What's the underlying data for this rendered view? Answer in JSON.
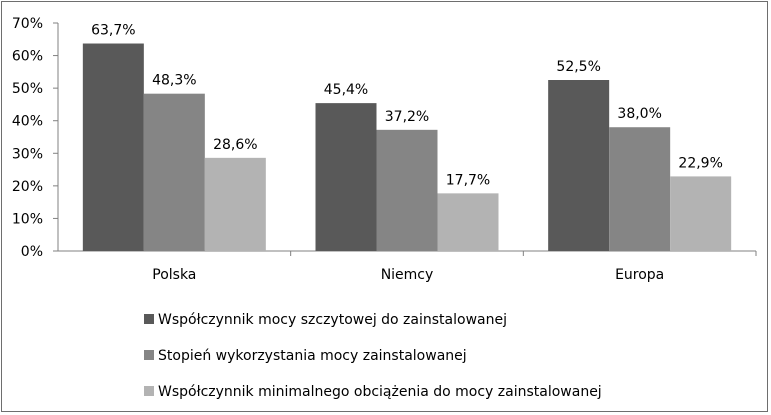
{
  "chart_data": {
    "type": "bar",
    "categories": [
      "Polska",
      "Niemcy",
      "Europa"
    ],
    "series": [
      {
        "name": "Współczynnik mocy szczytowej do zainstalowanej",
        "values": [
          63.7,
          45.4,
          52.5
        ],
        "color": "#595959"
      },
      {
        "name": "Stopień wykorzystania mocy zainstalowanej",
        "values": [
          48.3,
          37.2,
          38.0
        ],
        "color": "#858585"
      },
      {
        "name": "Współczynnik minimalnego obciążenia do mocy zainstalowanej",
        "values": [
          28.6,
          17.7,
          22.9
        ],
        "color": "#b3b3b3"
      }
    ],
    "data_labels": [
      [
        "63,7%",
        "45,4%",
        "52,5%"
      ],
      [
        "48,3%",
        "37,2%",
        "38,0%"
      ],
      [
        "28,6%",
        "17,7%",
        "22,9%"
      ]
    ],
    "y_ticks": [
      "0%",
      "10%",
      "20%",
      "30%",
      "40%",
      "50%",
      "60%",
      "70%"
    ],
    "ylim": [
      0,
      70
    ],
    "legend_position": "bottom",
    "grid": false
  }
}
